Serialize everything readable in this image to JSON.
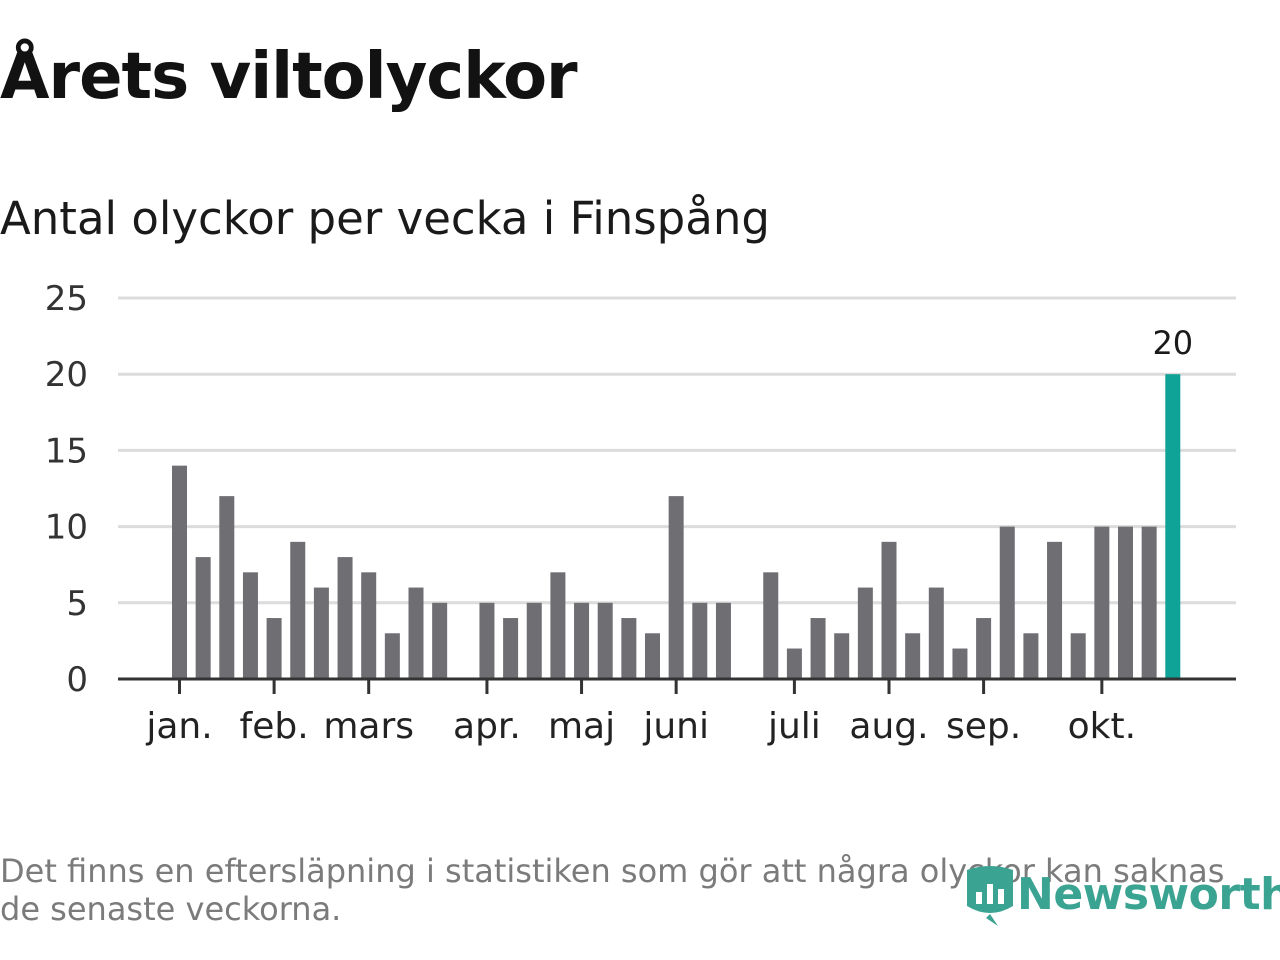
{
  "header": {
    "title": "Årets viltolyckor",
    "subtitle": "Antal olyckor per vecka i Finspång"
  },
  "footnote": "Det finns en eftersläpning i statistiken som gör att några olyckor kan saknas de senaste veckorna.",
  "logo": {
    "text": "Newsworthy",
    "icon": "bar-chart-shield-icon"
  },
  "colors": {
    "bar": "#6f6e73",
    "highlight": "#0ea396",
    "grid": "#dcdcdc",
    "axis": "#333333",
    "logo": "#3aa392"
  },
  "chart_data": {
    "type": "bar",
    "ylim": [
      0,
      25
    ],
    "y_ticks": [
      0,
      5,
      10,
      15,
      20,
      25
    ],
    "grid": true,
    "weeks": [
      1,
      2,
      3,
      4,
      5,
      6,
      7,
      8,
      9,
      10,
      11,
      12,
      13,
      14,
      15,
      16,
      17,
      18,
      19,
      20,
      21,
      22,
      23,
      24,
      25,
      26,
      27,
      28,
      29,
      30,
      31,
      32,
      33,
      34,
      35,
      36,
      37,
      38,
      39,
      40,
      41,
      42,
      43
    ],
    "values": [
      14,
      8,
      12,
      7,
      4,
      9,
      6,
      8,
      7,
      3,
      6,
      5,
      null,
      5,
      4,
      5,
      7,
      5,
      5,
      4,
      3,
      12,
      5,
      5,
      null,
      7,
      2,
      4,
      3,
      6,
      9,
      3,
      6,
      2,
      4,
      10,
      3,
      9,
      3,
      10,
      10,
      10,
      20
    ],
    "highlight_index": 42,
    "highlight_label": "20",
    "month_ticks": [
      {
        "label": "jan.",
        "week": 1
      },
      {
        "label": "feb.",
        "week": 5
      },
      {
        "label": "mars",
        "week": 9
      },
      {
        "label": "apr.",
        "week": 14
      },
      {
        "label": "maj",
        "week": 18
      },
      {
        "label": "juni",
        "week": 22
      },
      {
        "label": "juli",
        "week": 27
      },
      {
        "label": "aug.",
        "week": 31
      },
      {
        "label": "sep.",
        "week": 35
      },
      {
        "label": "okt.",
        "week": 40
      }
    ]
  }
}
